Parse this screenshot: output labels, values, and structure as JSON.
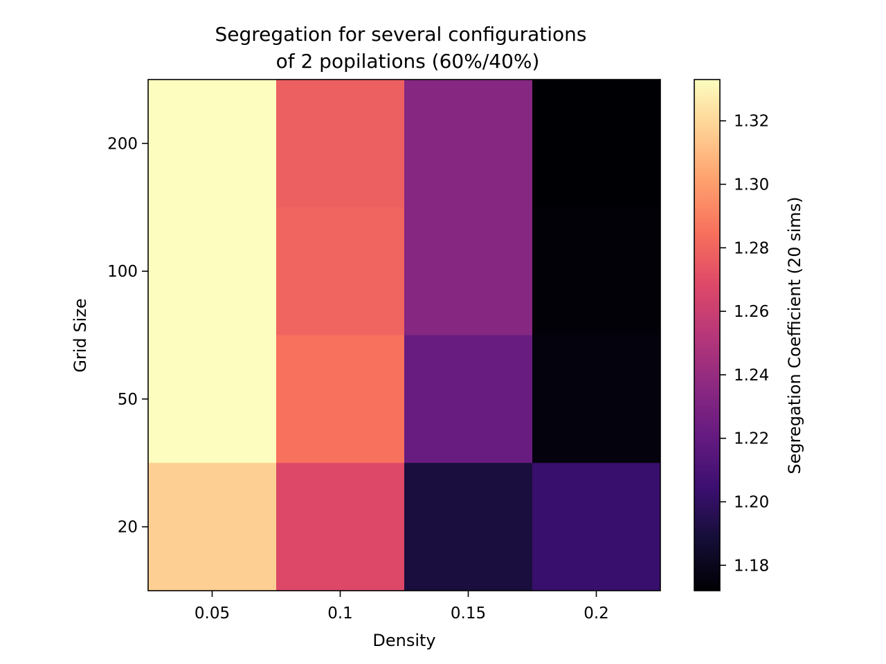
{
  "chart_data": {
    "type": "heatmap",
    "title_lines": [
      "Segregation for several configurations",
      "of 2 popilations (60%/40%)"
    ],
    "xlabel": "Density",
    "ylabel": "Grid Size",
    "x_categories": [
      "0.05",
      "0.1",
      "0.15",
      "0.2"
    ],
    "y_categories": [
      "200",
      "100",
      "50",
      "20"
    ],
    "values": [
      [
        1.333,
        1.278,
        1.234,
        1.172
      ],
      [
        1.333,
        1.28,
        1.234,
        1.173
      ],
      [
        1.333,
        1.285,
        1.222,
        1.175
      ],
      [
        1.317,
        1.268,
        1.19,
        1.203
      ]
    ],
    "colormap": "magma",
    "colorbar": {
      "label": "Segregation Coefficient (20 sims)",
      "range": [
        1.172,
        1.333
      ],
      "ticks": [
        "1.18",
        "1.20",
        "1.22",
        "1.24",
        "1.26",
        "1.28",
        "1.30",
        "1.32"
      ]
    },
    "grid": false
  }
}
